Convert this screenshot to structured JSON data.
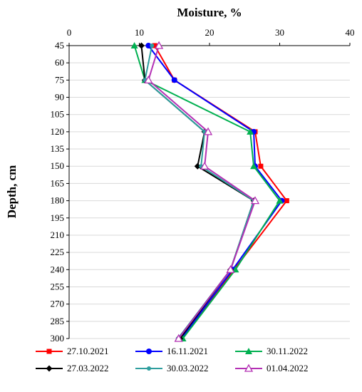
{
  "chart_data": {
    "type": "line",
    "xlabel": "Moisture, %",
    "ylabel": "Depth, cm",
    "xlim": [
      0,
      40
    ],
    "ylim": [
      45,
      300
    ],
    "x_ticks": [
      0,
      10,
      20,
      30,
      40
    ],
    "y_ticks": [
      45,
      60,
      75,
      90,
      105,
      120,
      135,
      150,
      165,
      180,
      195,
      210,
      225,
      240,
      255,
      270,
      285,
      300
    ],
    "y_inverted": true,
    "x_axis_position": "top",
    "grid": "horizontal",
    "legend_position": "bottom",
    "depths": [
      45,
      75,
      120,
      150,
      180,
      240,
      300
    ],
    "series": [
      {
        "name": "27.10.2021",
        "color": "#ff0000",
        "marker": "square",
        "values": [
          12.2,
          15.0,
          26.5,
          27.3,
          31.0,
          23.5,
          16.0
        ]
      },
      {
        "name": "16.11.2021",
        "color": "#0000ff",
        "marker": "circle",
        "values": [
          11.3,
          15.0,
          26.3,
          26.5,
          30.3,
          23.3,
          16.0
        ]
      },
      {
        "name": "30.11.2022",
        "color": "#00b050",
        "marker": "triangle",
        "values": [
          9.3,
          10.8,
          25.8,
          26.3,
          30.0,
          23.7,
          16.2
        ]
      },
      {
        "name": "27.03.2022",
        "color": "#000000",
        "marker": "diamond",
        "values": [
          10.3,
          10.8,
          19.3,
          18.3,
          26.3,
          23.0,
          15.8
        ]
      },
      {
        "name": "30.03.2022",
        "color": "#2e9e9e",
        "marker": "circle-small",
        "values": [
          11.8,
          10.8,
          19.3,
          18.8,
          26.3,
          23.0,
          15.5
        ]
      },
      {
        "name": "01.04.2022",
        "color": "#b430b4",
        "marker": "triangle-open",
        "values": [
          12.8,
          11.3,
          19.8,
          19.3,
          26.5,
          23.0,
          15.6
        ]
      }
    ]
  }
}
